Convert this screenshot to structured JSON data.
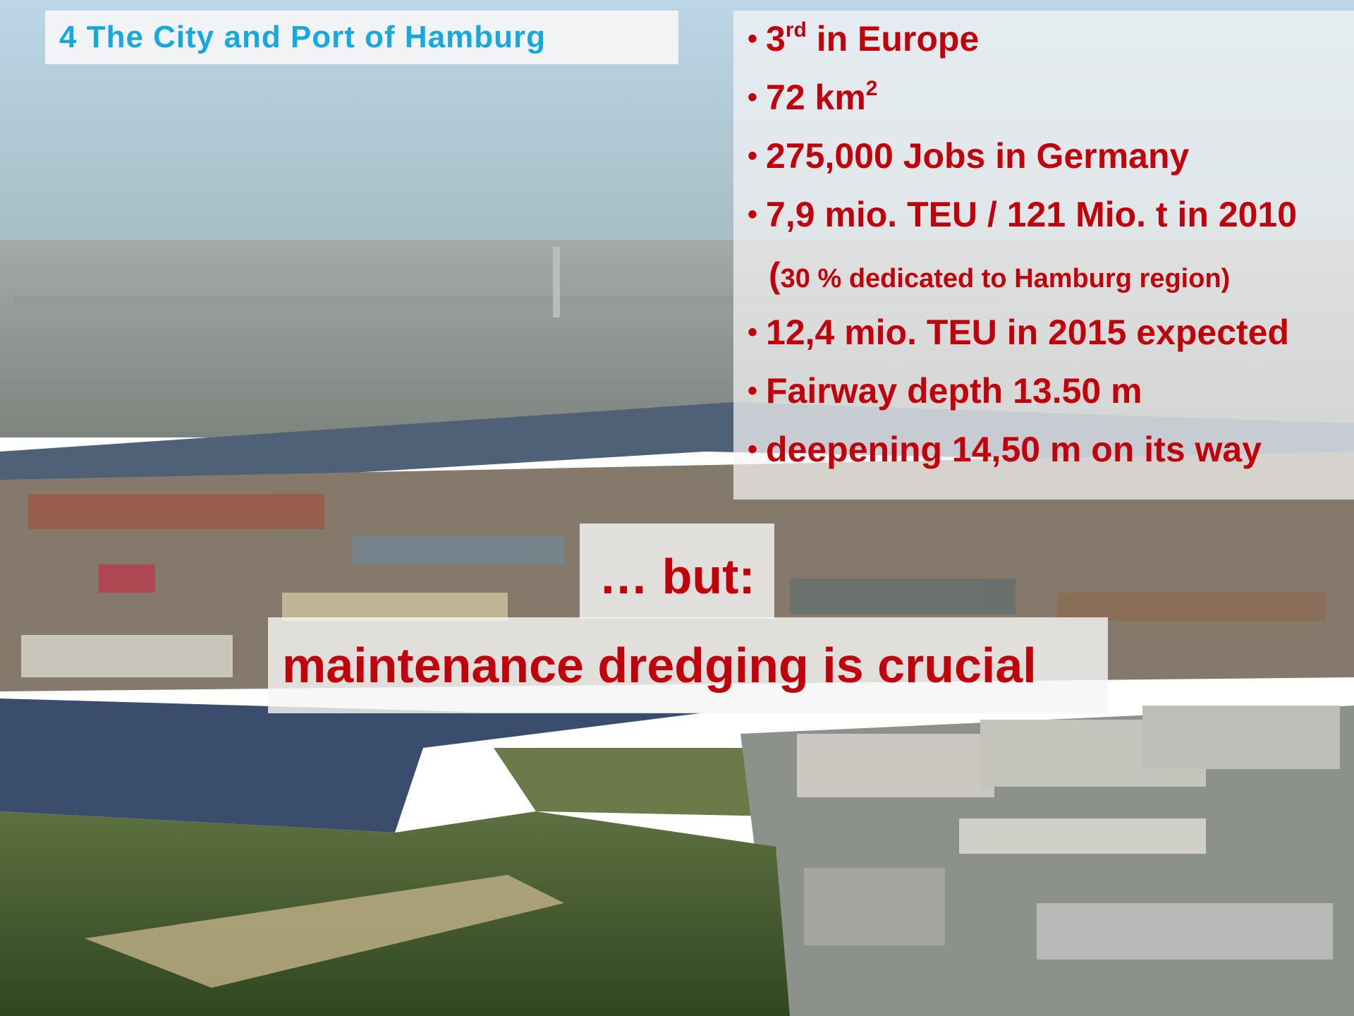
{
  "title": "4 The City and Port of Hamburg",
  "lines": [
    {
      "bullet": true,
      "parts": [
        {
          "text": "3"
        },
        {
          "text": "rd",
          "sup": true
        },
        {
          "text": " in Europe"
        }
      ]
    },
    {
      "bullet": true,
      "parts": [
        {
          "text": "72 km"
        },
        {
          "text": "2",
          "sup": true
        }
      ]
    },
    {
      "bullet": true,
      "parts": [
        {
          "text": "275,000 Jobs in Germany"
        }
      ]
    },
    {
      "bullet": true,
      "parts": [
        {
          "text": "7,9 mio. TEU / 121 Mio. t in 2010"
        }
      ]
    },
    {
      "bullet": false,
      "parts": [
        {
          "text": "("
        },
        {
          "text": "30 % dedicated to Hamburg region)",
          "small": true
        }
      ]
    },
    {
      "bullet": true,
      "parts": [
        {
          "text": "12,4 mio. TEU in 2015 expected"
        }
      ]
    },
    {
      "bullet": true,
      "parts": [
        {
          "text": "Fairway depth 13.50 m"
        }
      ]
    },
    {
      "bullet": true,
      "parts": [
        {
          "text": "deepening 14,50 m on its way"
        }
      ]
    }
  ],
  "but": "… but:",
  "conclusion": "maintenance dredging is crucial"
}
